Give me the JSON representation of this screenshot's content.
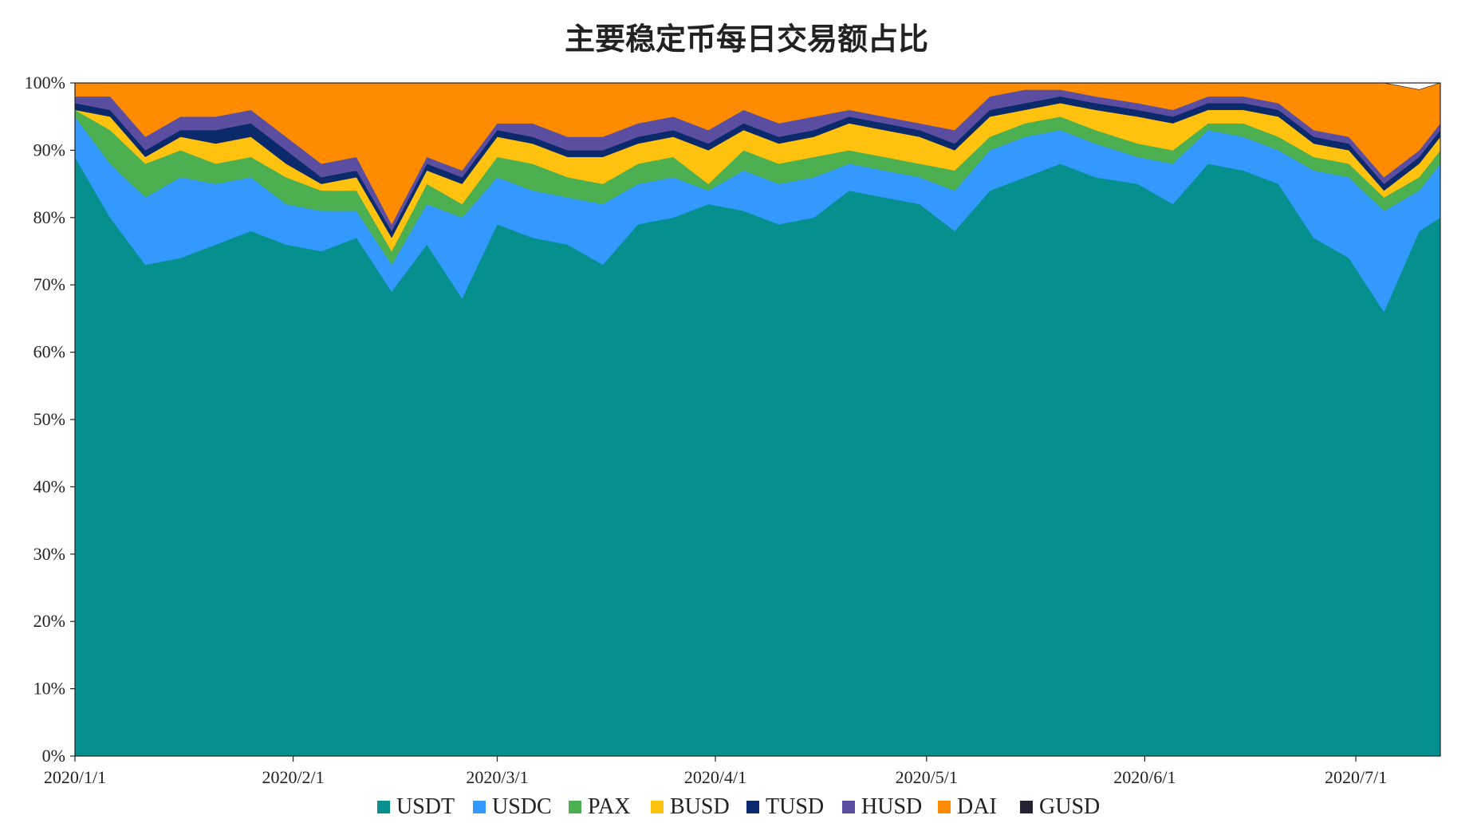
{
  "chart_data": {
    "type": "area",
    "stacked": true,
    "normalized": true,
    "title": "主要稳定币每日交易额占比",
    "xlabel": "",
    "ylabel": "",
    "ylim": [
      0,
      100
    ],
    "y_ticks": [
      "0%",
      "10%",
      "20%",
      "30%",
      "40%",
      "50%",
      "60%",
      "70%",
      "80%",
      "90%",
      "100%"
    ],
    "x_range": [
      "2020-01-01",
      "2020-07-13"
    ],
    "x_ticks": [
      {
        "date": "2020-01-01",
        "label": "2020/1/1"
      },
      {
        "date": "2020-02-01",
        "label": "2020/2/1"
      },
      {
        "date": "2020-03-01",
        "label": "2020/3/1"
      },
      {
        "date": "2020-04-01",
        "label": "2020/4/1"
      },
      {
        "date": "2020-05-01",
        "label": "2020/5/1"
      },
      {
        "date": "2020-06-01",
        "label": "2020/6/1"
      },
      {
        "date": "2020-07-01",
        "label": "2020/7/1"
      }
    ],
    "legend_position": "bottom",
    "grid": false,
    "dates": [
      "2020-01-01",
      "2020-01-06",
      "2020-01-11",
      "2020-01-16",
      "2020-01-21",
      "2020-01-26",
      "2020-01-31",
      "2020-02-05",
      "2020-02-10",
      "2020-02-15",
      "2020-02-20",
      "2020-02-25",
      "2020-03-01",
      "2020-03-06",
      "2020-03-11",
      "2020-03-16",
      "2020-03-21",
      "2020-03-26",
      "2020-03-31",
      "2020-04-05",
      "2020-04-10",
      "2020-04-15",
      "2020-04-20",
      "2020-04-25",
      "2020-04-30",
      "2020-05-05",
      "2020-05-10",
      "2020-05-15",
      "2020-05-20",
      "2020-05-25",
      "2020-05-31",
      "2020-06-05",
      "2020-06-10",
      "2020-06-15",
      "2020-06-20",
      "2020-06-25",
      "2020-06-30",
      "2020-07-05",
      "2020-07-10",
      "2020-07-13"
    ],
    "series": [
      {
        "name": "USDT",
        "color": "#058f8f",
        "values": [
          89,
          80,
          73,
          74,
          76,
          78,
          76,
          75,
          77,
          69,
          76,
          68,
          79,
          77,
          76,
          73,
          79,
          80,
          82,
          81,
          79,
          80,
          84,
          83,
          82,
          78,
          84,
          86,
          88,
          86,
          85,
          82,
          88,
          87,
          85,
          77,
          74,
          66,
          78,
          80
        ]
      },
      {
        "name": "USDC",
        "color": "#3399ff",
        "values": [
          6,
          8,
          10,
          12,
          9,
          8,
          6,
          6,
          4,
          4,
          6,
          12,
          7,
          7,
          7,
          9,
          6,
          6,
          2,
          6,
          6,
          6,
          4,
          4,
          4,
          6,
          6,
          6,
          5,
          5,
          4,
          6,
          5,
          5,
          5,
          10,
          12,
          15,
          6,
          8
        ]
      },
      {
        "name": "PAX",
        "color": "#4caf50",
        "values": [
          1,
          5,
          5,
          4,
          3,
          3,
          4,
          3,
          3,
          2,
          3,
          2,
          3,
          4,
          3,
          3,
          3,
          3,
          1,
          3,
          3,
          3,
          2,
          2,
          2,
          3,
          2,
          2,
          2,
          2,
          2,
          2,
          1,
          2,
          2,
          2,
          2,
          2,
          2,
          2
        ]
      },
      {
        "name": "BUSD",
        "color": "#ffc20e",
        "values": [
          0,
          2,
          1,
          2,
          3,
          3,
          2,
          1,
          2,
          2,
          2,
          3,
          3,
          3,
          3,
          4,
          3,
          3,
          5,
          3,
          3,
          3,
          4,
          4,
          4,
          3,
          3,
          2,
          2,
          3,
          4,
          4,
          2,
          2,
          3,
          2,
          2,
          1,
          2,
          2
        ]
      },
      {
        "name": "TUSD",
        "color": "#0a2a6b",
        "values": [
          1,
          1,
          1,
          1,
          2,
          2,
          2,
          1,
          1,
          1,
          1,
          1,
          1,
          1,
          1,
          1,
          1,
          1,
          1,
          1,
          1,
          1,
          1,
          1,
          1,
          1,
          1,
          1,
          1,
          1,
          1,
          1,
          1,
          1,
          1,
          1,
          1,
          1,
          1,
          1
        ]
      },
      {
        "name": "HUSD",
        "color": "#5b4ea0",
        "values": [
          1,
          2,
          2,
          2,
          2,
          2,
          2,
          2,
          2,
          1,
          1,
          1,
          1,
          2,
          2,
          2,
          2,
          2,
          2,
          2,
          2,
          2,
          1,
          1,
          1,
          2,
          2,
          2,
          1,
          1,
          1,
          1,
          1,
          1,
          1,
          1,
          1,
          1,
          1,
          1
        ]
      },
      {
        "name": "DAI",
        "color": "#ff8c00",
        "values": [
          2,
          2,
          8,
          5,
          5,
          4,
          8,
          12,
          11,
          21,
          11,
          13,
          6,
          6,
          8,
          8,
          6,
          5,
          7,
          4,
          6,
          5,
          4,
          5,
          6,
          7,
          2,
          1,
          1,
          2,
          3,
          4,
          2,
          2,
          3,
          7,
          8,
          14,
          9,
          6
        ]
      },
      {
        "name": "GUSD",
        "color": "#222233",
        "values": [
          0,
          0,
          0,
          0,
          0,
          0,
          0,
          0,
          0,
          0,
          0,
          0,
          0,
          0,
          0,
          0,
          0,
          0,
          0,
          0,
          0,
          0,
          0,
          0,
          0,
          0,
          0,
          0,
          0,
          0,
          0,
          0,
          0,
          0,
          0,
          0,
          0,
          0,
          0,
          0
        ]
      }
    ]
  }
}
